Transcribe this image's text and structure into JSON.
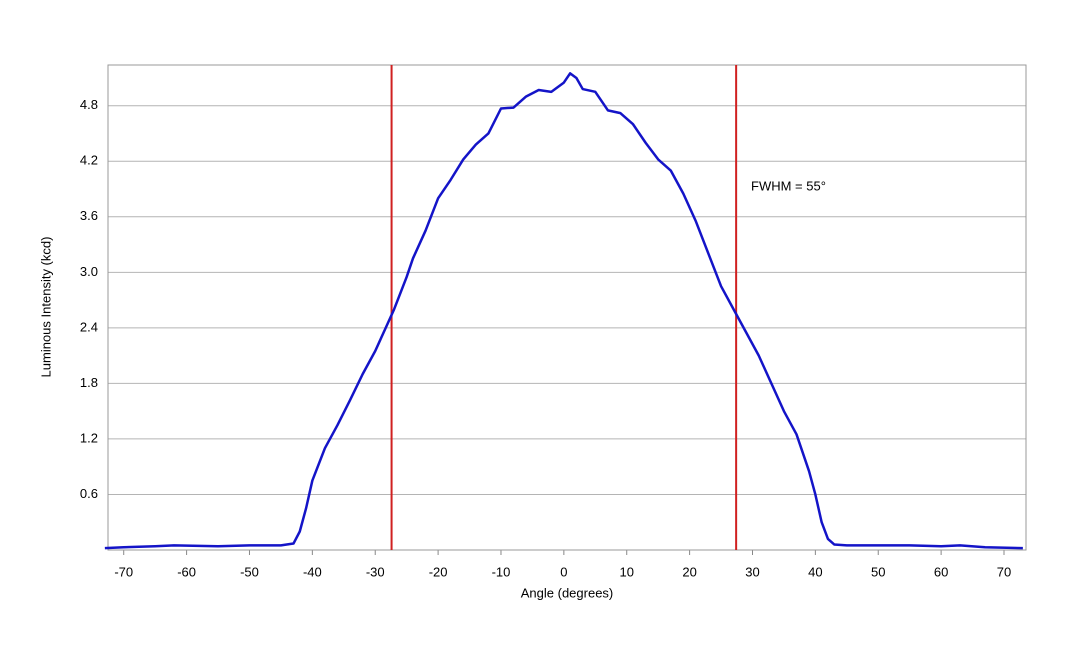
{
  "chart_data": {
    "type": "line",
    "x_label": "Angle (degrees)",
    "y_label": "Luminous Intensity (kcd)",
    "annotation": "FWHM = 55°",
    "x": [
      -73,
      -70,
      -65,
      -62,
      -55,
      -50,
      -45,
      -43,
      -42,
      -41,
      -40,
      -38,
      -36,
      -34,
      -32,
      -30,
      -28,
      -27,
      -25,
      -24,
      -22,
      -20,
      -18,
      -16,
      -14,
      -12,
      -10,
      -8,
      -6,
      -4,
      -2,
      0,
      1,
      2,
      3,
      5,
      7,
      9,
      11,
      13,
      15,
      17,
      19,
      21,
      23,
      25,
      27,
      29,
      31,
      33,
      35,
      37,
      39,
      40,
      41,
      42,
      43,
      45,
      50,
      55,
      60,
      63,
      67,
      73
    ],
    "series": [
      {
        "name": "Luminous Intensity",
        "color": "#1414c8",
        "values": [
          0.02,
          0.03,
          0.04,
          0.05,
          0.04,
          0.05,
          0.05,
          0.07,
          0.2,
          0.45,
          0.75,
          1.1,
          1.35,
          1.62,
          1.9,
          2.15,
          2.45,
          2.6,
          2.95,
          3.15,
          3.45,
          3.8,
          4.0,
          4.22,
          4.38,
          4.5,
          4.77,
          4.78,
          4.9,
          4.97,
          4.95,
          5.05,
          5.15,
          5.1,
          4.98,
          4.95,
          4.75,
          4.72,
          4.6,
          4.4,
          4.22,
          4.1,
          3.85,
          3.55,
          3.2,
          2.85,
          2.6,
          2.35,
          2.1,
          1.8,
          1.5,
          1.25,
          0.85,
          0.6,
          0.3,
          0.12,
          0.06,
          0.05,
          0.05,
          0.05,
          0.04,
          0.05,
          0.03,
          0.02
        ]
      }
    ],
    "vlines": {
      "color": "#d02020",
      "values": [
        -27.4,
        27.4
      ]
    },
    "xlim": [
      -72.5,
      73.5
    ],
    "xticks": [
      -70,
      -60,
      -50,
      -40,
      -30,
      -20,
      -10,
      0,
      10,
      20,
      30,
      40,
      50,
      60,
      70
    ],
    "ylim": [
      0,
      5.24
    ],
    "yticks": [
      0.6,
      1.2,
      1.8,
      2.4,
      {
        "value": 3,
        "label": "3.0"
      },
      3.6,
      4.2,
      4.8
    ],
    "grid": true
  }
}
